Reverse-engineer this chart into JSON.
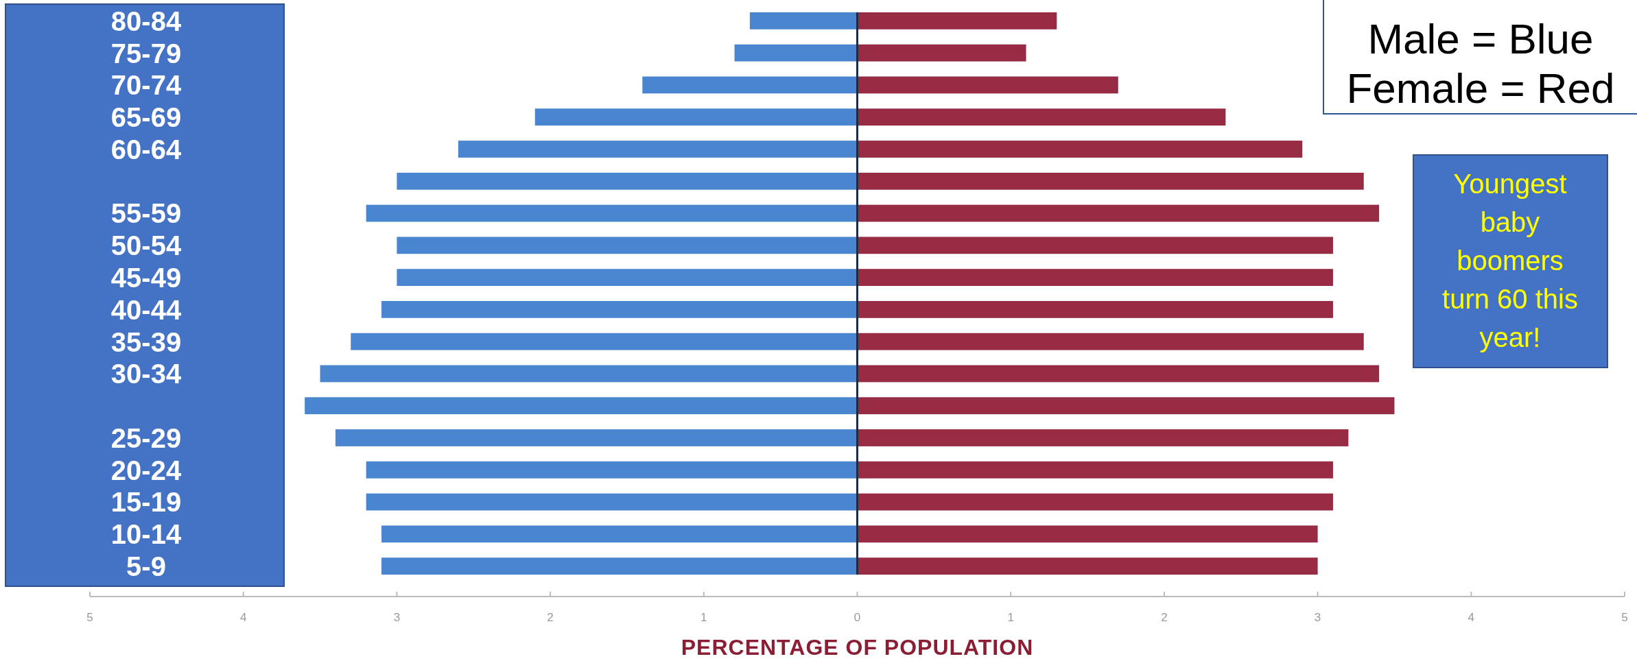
{
  "chart_data": {
    "type": "bar",
    "orientation": "horizontal",
    "stacked": true,
    "xlabel": "PERCENTAGE OF POPULATION",
    "categories": [
      "80-84",
      "75-79",
      "70-74",
      "65-69",
      "60-64",
      null,
      "55-59",
      "50-54",
      "45-49",
      "40-44",
      "35-39",
      "30-34",
      null,
      "25-29",
      "20-24",
      "15-19",
      "10-14",
      "5-9"
    ],
    "xlim": [
      -5,
      5
    ],
    "xticks": [
      {
        "value": -5,
        "label": "5"
      },
      {
        "value": -4,
        "label": "4"
      },
      {
        "value": -3,
        "label": "3"
      },
      {
        "value": -2,
        "label": "2"
      },
      {
        "value": -1,
        "label": "1"
      },
      0,
      1,
      2,
      3,
      4,
      5
    ],
    "series": [
      {
        "color": "#4a86d0",
        "values": [
          -0.7,
          -0.8,
          -1.4,
          -2.1,
          -2.6,
          -3.0,
          -3.2,
          -3.0,
          -3.0,
          -3.1,
          -3.3,
          -3.5,
          -3.6,
          -3.4,
          -3.2,
          -3.2,
          -3.1,
          -3.1
        ]
      },
      {
        "color": "#962b43",
        "values": [
          1.3,
          1.1,
          1.7,
          2.4,
          2.9,
          3.3,
          3.4,
          3.1,
          3.1,
          3.1,
          3.3,
          3.4,
          3.5,
          3.2,
          3.1,
          3.1,
          3.0,
          3.0
        ]
      }
    ],
    "annotations": [
      "Male = Blue",
      "Female = Red",
      "Youngest baby boomers turn 60 this year!"
    ]
  }
}
